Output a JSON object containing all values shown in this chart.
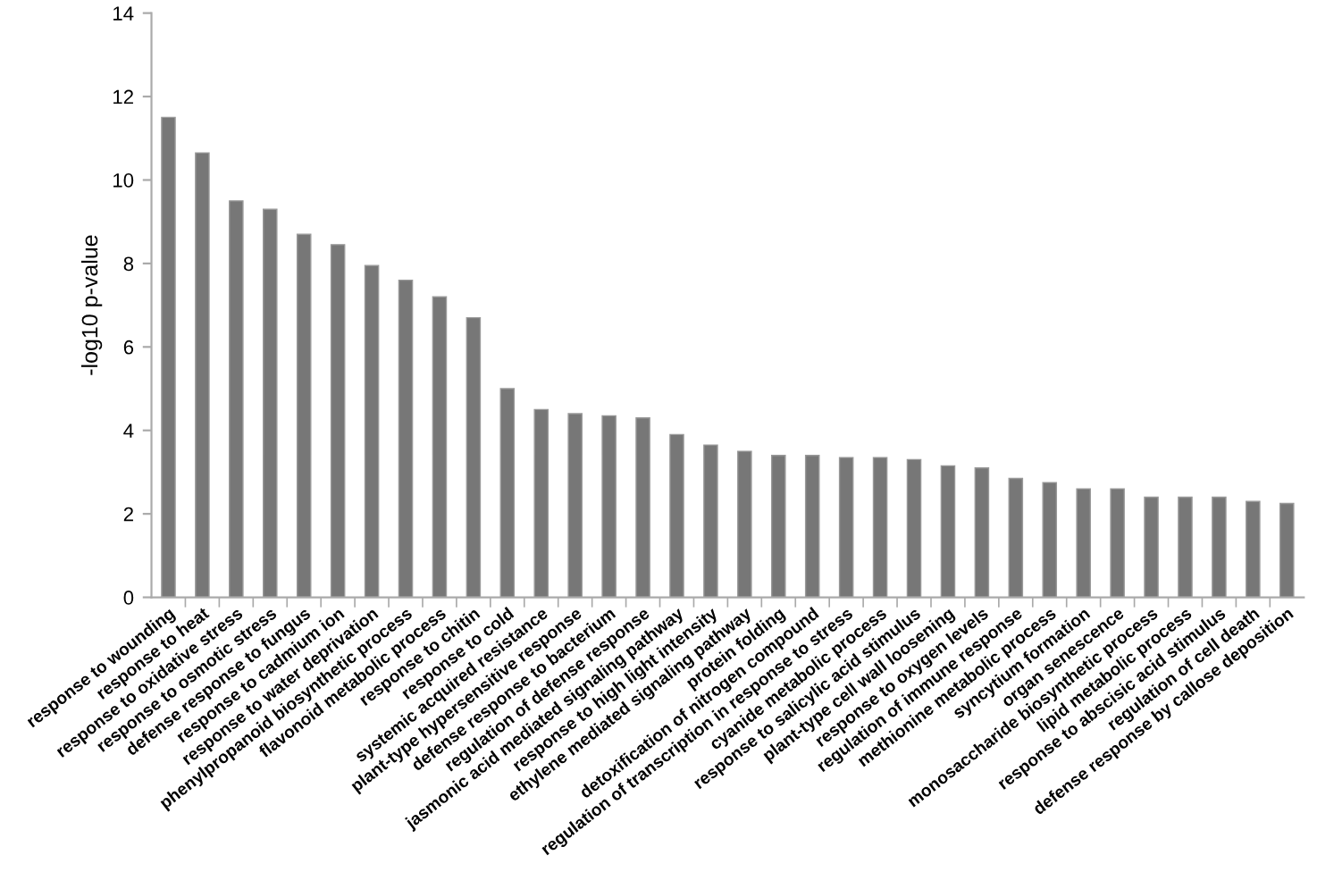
{
  "chart_data": {
    "type": "bar",
    "ylabel": "-log10 p-value",
    "categories": [
      "response to wounding",
      "response to heat",
      "response to oxidative stress",
      "response to osmotic stress",
      "defense response to fungus",
      "response to cadmium ion",
      "response to water deprivation",
      "phenylpropanoid biosynthetic process",
      "flavonoid metabolic process",
      "response to chitin",
      "response to cold",
      "systemic acquired resistance",
      "plant-type hypersensitive response",
      "defense response to bacterium",
      "regulation of defense response",
      "jasmonic acid mediated signaling pathway",
      "response to high light intensity",
      "ethylene mediated signaling pathway",
      "protein folding",
      "detoxification of nitrogen compound",
      "regulation of transcription in response to stress",
      "cyanide metabolic process",
      "response to salicylic acid stimulus",
      "plant-type cell wall loosening",
      "response to oxygen levels",
      "regulation of immune response",
      "methionine metabolic process",
      "syncytium formation",
      "organ senescence",
      "monosaccharide biosynthetic process",
      "lipid metabolic process",
      "response to abscisic acid stimulus",
      "regulation of cell death",
      "defense response by callose deposition"
    ],
    "values": [
      11.5,
      10.65,
      9.5,
      9.3,
      8.7,
      8.45,
      7.95,
      7.6,
      7.2,
      6.7,
      5.0,
      4.5,
      4.4,
      4.35,
      4.3,
      3.9,
      3.65,
      3.5,
      3.4,
      3.4,
      3.35,
      3.35,
      3.3,
      3.15,
      3.1,
      2.85,
      2.75,
      2.6,
      2.6,
      2.4,
      2.4,
      2.4,
      2.3,
      2.25
    ],
    "color": "#777777",
    "ylim": [
      0,
      14
    ],
    "yticks": [
      0,
      2,
      4,
      6,
      8,
      10,
      12,
      14
    ],
    "grid": false,
    "legend": false
  }
}
